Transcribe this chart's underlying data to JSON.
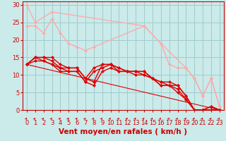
{
  "title": "",
  "xlabel": "Vent moyen/en rafales ( km/h )",
  "ylabel": "",
  "background_color": "#cbeaea",
  "grid_color": "#a0cccc",
  "xlim": [
    -0.5,
    23.5
  ],
  "ylim": [
    0,
    31
  ],
  "yticks": [
    0,
    5,
    10,
    15,
    20,
    25,
    30
  ],
  "xticks": [
    0,
    1,
    2,
    3,
    4,
    5,
    6,
    7,
    8,
    9,
    10,
    11,
    12,
    13,
    14,
    15,
    16,
    17,
    18,
    19,
    20,
    21,
    22,
    23
  ],
  "series": [
    {
      "x": [
        0,
        1,
        3,
        14,
        16,
        19,
        20,
        21,
        22,
        23
      ],
      "y": [
        30,
        25,
        28,
        24,
        19,
        12,
        9,
        4,
        9,
        1
      ],
      "color": "#ffaaaa",
      "marker": "D",
      "markersize": 2,
      "linewidth": 1.0
    },
    {
      "x": [
        0,
        1,
        2,
        3,
        4,
        5,
        6,
        7,
        8,
        14,
        16,
        17,
        18,
        19,
        20,
        21,
        22,
        23
      ],
      "y": [
        24,
        24,
        22,
        26,
        22,
        19,
        18,
        17,
        18,
        24,
        19,
        13,
        12,
        12,
        9,
        4,
        9,
        1
      ],
      "color": "#ffaaaa",
      "marker": "D",
      "markersize": 2,
      "linewidth": 1.0
    },
    {
      "x": [
        0,
        1,
        2,
        3,
        4,
        5,
        6,
        7,
        8,
        9,
        10,
        11,
        12,
        13,
        14,
        15,
        16,
        17,
        18,
        19,
        20,
        21,
        22,
        23
      ],
      "y": [
        13,
        15,
        15,
        15,
        13,
        12,
        12,
        9,
        12,
        13,
        13,
        12,
        11,
        11,
        11,
        9,
        8,
        8,
        7,
        4,
        0,
        0,
        1,
        0
      ],
      "color": "#dd0000",
      "marker": "D",
      "markersize": 2,
      "linewidth": 1.0
    },
    {
      "x": [
        0,
        1,
        2,
        3,
        4,
        5,
        6,
        7,
        8,
        9,
        10,
        11,
        12,
        13,
        14,
        15,
        16,
        17,
        18,
        19,
        20,
        21,
        22,
        23
      ],
      "y": [
        13,
        15,
        15,
        14,
        12,
        12,
        12,
        9,
        8,
        13,
        13,
        12,
        11,
        11,
        11,
        9,
        8,
        7,
        7,
        4,
        0,
        0,
        1,
        0
      ],
      "color": "#dd0000",
      "marker": "D",
      "markersize": 2,
      "linewidth": 1.0
    },
    {
      "x": [
        0,
        1,
        2,
        3,
        4,
        5,
        6,
        7,
        8,
        9,
        10,
        11,
        12,
        13,
        14,
        15,
        16,
        17,
        18,
        19,
        20,
        21,
        22,
        23
      ],
      "y": [
        13,
        15,
        14,
        13,
        12,
        11,
        11,
        8,
        11,
        12,
        13,
        11,
        11,
        11,
        10,
        9,
        7,
        7,
        6,
        3,
        0,
        0,
        0,
        0
      ],
      "color": "#dd0000",
      "marker": "D",
      "markersize": 2,
      "linewidth": 1.0
    },
    {
      "x": [
        0,
        1,
        2,
        3,
        4,
        5,
        6,
        7,
        8,
        9,
        10,
        11,
        12,
        13,
        14,
        15,
        16,
        17,
        18,
        19,
        20,
        21,
        22,
        23
      ],
      "y": [
        13,
        14,
        14,
        13,
        11,
        11,
        11,
        8,
        7,
        11,
        12,
        11,
        11,
        10,
        10,
        9,
        7,
        7,
        5,
        3,
        0,
        0,
        0,
        0
      ],
      "color": "#dd0000",
      "marker": "D",
      "markersize": 2,
      "linewidth": 1.0
    },
    {
      "x": [
        0,
        23
      ],
      "y": [
        13,
        0
      ],
      "color": "#dd0000",
      "marker": null,
      "markersize": 0,
      "linewidth": 0.8
    }
  ],
  "arrow_color": "#cc0000",
  "xlabel_color": "#cc0000",
  "xlabel_fontsize": 7.5,
  "tick_color": "#cc0000",
  "tick_fontsize": 6,
  "ytick_fontsize": 6
}
